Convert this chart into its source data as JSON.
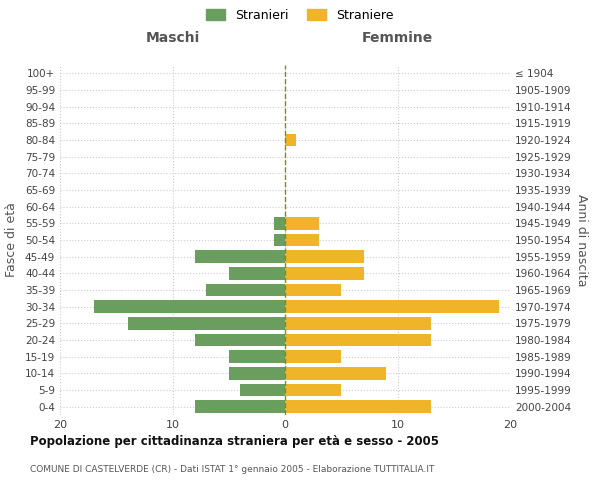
{
  "age_groups": [
    "0-4",
    "5-9",
    "10-14",
    "15-19",
    "20-24",
    "25-29",
    "30-34",
    "35-39",
    "40-44",
    "45-49",
    "50-54",
    "55-59",
    "60-64",
    "65-69",
    "70-74",
    "75-79",
    "80-84",
    "85-89",
    "90-94",
    "95-99",
    "100+"
  ],
  "birth_years": [
    "2000-2004",
    "1995-1999",
    "1990-1994",
    "1985-1989",
    "1980-1984",
    "1975-1979",
    "1970-1974",
    "1965-1969",
    "1960-1964",
    "1955-1959",
    "1950-1954",
    "1945-1949",
    "1940-1944",
    "1935-1939",
    "1930-1934",
    "1925-1929",
    "1920-1924",
    "1915-1919",
    "1910-1914",
    "1905-1909",
    "≤ 1904"
  ],
  "maschi": [
    8,
    4,
    5,
    5,
    8,
    14,
    17,
    7,
    5,
    8,
    1,
    1,
    0,
    0,
    0,
    0,
    0,
    0,
    0,
    0,
    0
  ],
  "femmine": [
    13,
    5,
    9,
    5,
    13,
    13,
    19,
    5,
    7,
    7,
    3,
    3,
    0,
    0,
    0,
    0,
    1,
    0,
    0,
    0,
    0
  ],
  "color_maschi": "#6a9e5e",
  "color_femmine": "#f0b429",
  "title": "Popolazione per cittadinanza straniera per età e sesso - 2005",
  "subtitle": "COMUNE DI CASTELVERDE (CR) - Dati ISTAT 1° gennaio 2005 - Elaborazione TUTTITALIA.IT",
  "xlabel_left": "Maschi",
  "xlabel_right": "Femmine",
  "ylabel_left": "Fasce di età",
  "ylabel_right": "Anni di nascita",
  "legend_maschi": "Stranieri",
  "legend_femmine": "Straniere",
  "xlim": 20,
  "background_color": "#ffffff",
  "grid_color": "#cccccc",
  "zeroline_color": "#8b8b00"
}
